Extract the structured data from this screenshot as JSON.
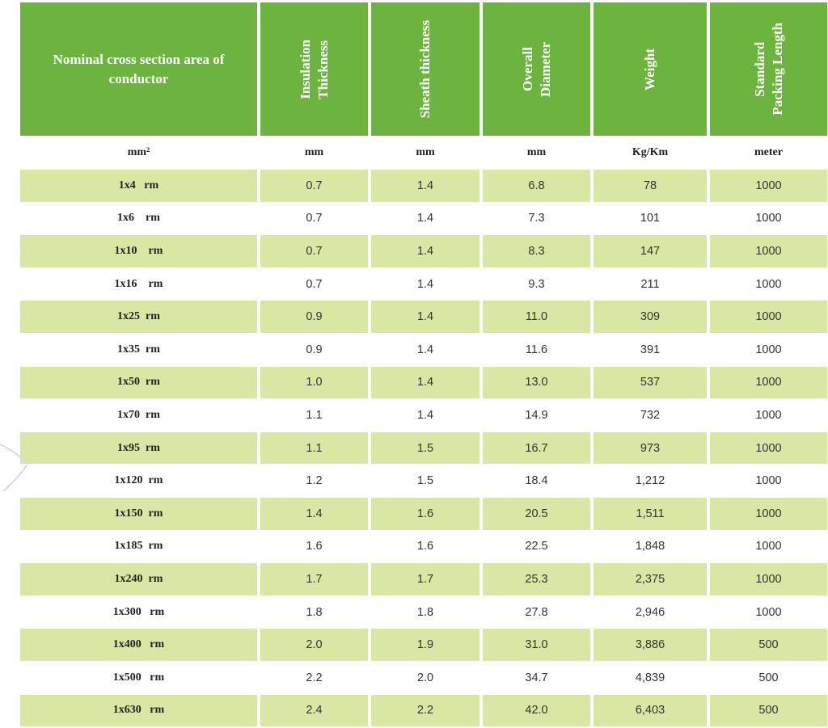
{
  "header": {
    "col0": "Nominal cross section area of conductor",
    "col1": "Insulation\nThickness",
    "col2": "Sheath thickness",
    "col3": "Overall\nDiameter",
    "col4": "Weight",
    "col5": "Standard\nPacking Length"
  },
  "units": {
    "col0": "mm²",
    "col1": "mm",
    "col2": "mm",
    "col3": "mm",
    "col4": "Kg/Km",
    "col5": "meter"
  },
  "colors": {
    "header_bg": "#6db33f",
    "shaded_row_bg": "#d9e7a4"
  },
  "rows": [
    {
      "size": "1x4   rm",
      "insulation": "0.7",
      "sheath": "1.4",
      "diameter": "6.8",
      "weight": "78",
      "length": "1000"
    },
    {
      "size": "1x6    rm",
      "insulation": "0.7",
      "sheath": "1.4",
      "diameter": "7.3",
      "weight": "101",
      "length": "1000"
    },
    {
      "size": "1x10    rm",
      "insulation": "0.7",
      "sheath": "1.4",
      "diameter": "8.3",
      "weight": "147",
      "length": "1000"
    },
    {
      "size": "1x16    rm",
      "insulation": "0.7",
      "sheath": "1.4",
      "diameter": "9.3",
      "weight": "211",
      "length": "1000"
    },
    {
      "size": "1x25  rm",
      "insulation": "0.9",
      "sheath": "1.4",
      "diameter": "11.0",
      "weight": "309",
      "length": "1000"
    },
    {
      "size": "1x35  rm",
      "insulation": "0.9",
      "sheath": "1.4",
      "diameter": "11.6",
      "weight": "391",
      "length": "1000"
    },
    {
      "size": "1x50  rm",
      "insulation": "1.0",
      "sheath": "1.4",
      "diameter": "13.0",
      "weight": "537",
      "length": "1000"
    },
    {
      "size": "1x70  rm",
      "insulation": "1.1",
      "sheath": "1.4",
      "diameter": "14.9",
      "weight": "732",
      "length": "1000"
    },
    {
      "size": "1x95  rm",
      "insulation": "1.1",
      "sheath": "1.5",
      "diameter": "16.7",
      "weight": "973",
      "length": "1000"
    },
    {
      "size": "1x120  rm",
      "insulation": "1.2",
      "sheath": "1.5",
      "diameter": "18.4",
      "weight": "1,212",
      "length": "1000"
    },
    {
      "size": "1x150  rm",
      "insulation": "1.4",
      "sheath": "1.6",
      "diameter": "20.5",
      "weight": "1,511",
      "length": "1000"
    },
    {
      "size": "1x185  rm",
      "insulation": "1.6",
      "sheath": "1.6",
      "diameter": "22.5",
      "weight": "1,848",
      "length": "1000"
    },
    {
      "size": "1x240  rm",
      "insulation": "1.7",
      "sheath": "1.7",
      "diameter": "25.3",
      "weight": "2,375",
      "length": "1000"
    },
    {
      "size": "1x300   rm",
      "insulation": "1.8",
      "sheath": "1.8",
      "diameter": "27.8",
      "weight": "2,946",
      "length": "1000"
    },
    {
      "size": "1x400   rm",
      "insulation": "2.0",
      "sheath": "1.9",
      "diameter": "31.0",
      "weight": "3,886",
      "length": "500"
    },
    {
      "size": "1x500   rm",
      "insulation": "2.2",
      "sheath": "2.0",
      "diameter": "34.7",
      "weight": "4,839",
      "length": "500"
    },
    {
      "size": "1x630   rm",
      "insulation": "2.4",
      "sheath": "2.2",
      "diameter": "42.0",
      "weight": "6,403",
      "length": "500"
    }
  ]
}
